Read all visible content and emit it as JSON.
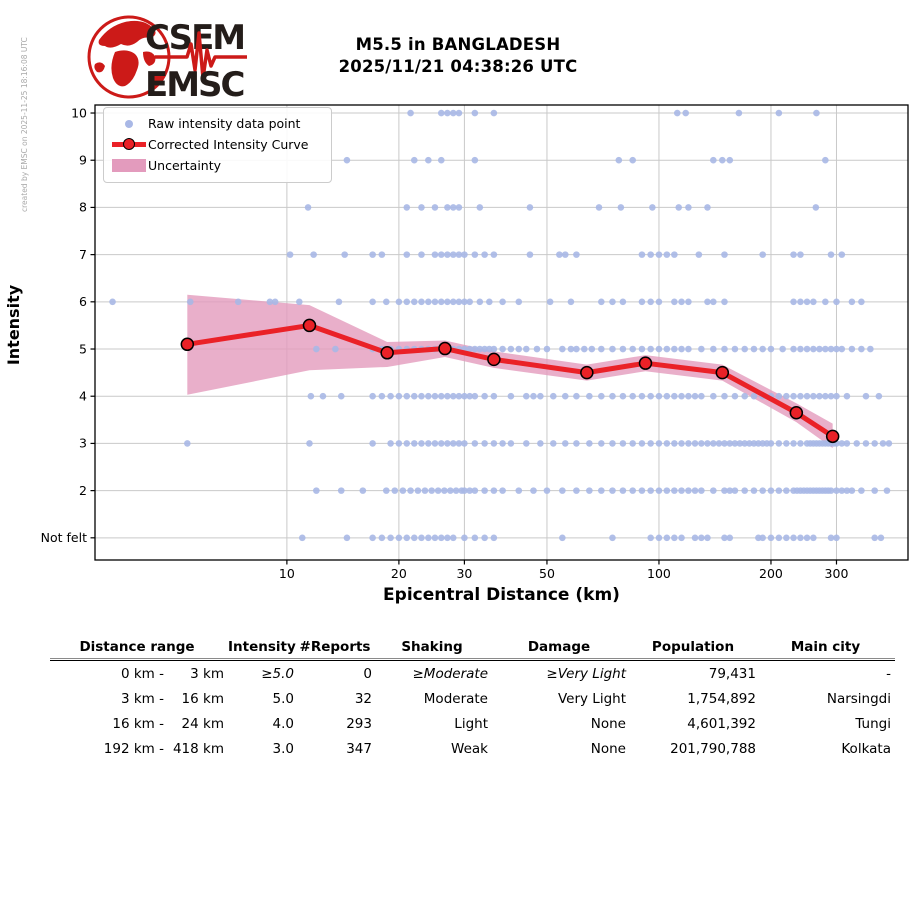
{
  "header": {
    "logo_text_top": "CSEM",
    "logo_text_bottom": "EMSC",
    "title_line1": "M5.5 in BANGLADESH",
    "title_line2": "2025/11/21 04:38:26 UTC"
  },
  "watermark": "created by EMSC on 2025-11-25 18:16:08 UTC",
  "chart_data": {
    "type": "scatter",
    "title": "M5.5 in BANGLADESH 2025/11/21 04:38:26 UTC",
    "xlabel": "Epicentral Distance (km)",
    "ylabel": "Intensity",
    "x_scale": "log",
    "x_range": [
      3.05,
      467
    ],
    "y_range": [
      0.53,
      10.17
    ],
    "grid": true,
    "x_ticks": [
      10,
      20,
      30,
      50,
      100,
      200,
      300
    ],
    "y_ticks": [
      {
        "value": 1,
        "label": "Not felt"
      },
      {
        "value": 2,
        "label": "2"
      },
      {
        "value": 3,
        "label": "3"
      },
      {
        "value": 4,
        "label": "4"
      },
      {
        "value": 5,
        "label": "5"
      },
      {
        "value": 6,
        "label": "6"
      },
      {
        "value": 7,
        "label": "7"
      },
      {
        "value": 8,
        "label": "8"
      },
      {
        "value": 9,
        "label": "9"
      },
      {
        "value": 10,
        "label": "10"
      }
    ],
    "legend_position": "upper left",
    "legend": [
      "Raw intensity data point",
      "Corrected Intensity Curve",
      "Uncertainty"
    ],
    "colors": {
      "raw_point": "#a9b8e6",
      "curve": "#ea2127",
      "band": "#e39bbd",
      "grid": "#c9c9c9",
      "logo_red": "#cc1a18",
      "logo_dark": "#241d1a"
    },
    "raw_points": [
      {
        "intensity": 10,
        "distances_km": [
          21.5,
          26,
          27,
          28,
          29,
          32,
          36,
          112,
          118,
          164,
          210,
          265
        ]
      },
      {
        "intensity": 9,
        "distances_km": [
          14.5,
          22,
          24,
          26,
          32,
          78,
          85,
          140,
          148,
          155,
          280
        ]
      },
      {
        "intensity": 8,
        "distances_km": [
          11.4,
          21,
          23,
          25,
          27,
          28,
          29,
          33,
          45,
          69,
          79,
          96,
          113,
          120,
          135,
          264
        ]
      },
      {
        "intensity": 7,
        "distances_km": [
          10.2,
          11.8,
          14.3,
          17,
          18,
          21,
          23,
          25,
          26,
          27,
          28,
          29,
          30,
          32,
          34,
          36,
          45,
          54,
          56,
          60,
          90,
          95,
          100,
          105,
          110,
          128,
          150,
          190,
          230,
          240,
          290,
          310
        ]
      },
      {
        "intensity": 6,
        "distances_km": [
          3.4,
          5.5,
          7.4,
          9,
          9.3,
          10.8,
          13.8,
          17,
          18.5,
          20,
          21,
          22,
          23,
          24,
          25,
          26,
          27,
          28,
          29,
          30,
          31,
          33,
          35,
          38,
          42,
          51,
          58,
          70,
          75,
          80,
          90,
          95,
          100,
          110,
          115,
          120,
          135,
          140,
          150,
          230,
          240,
          250,
          260,
          280,
          300,
          330,
          350
        ]
      },
      {
        "intensity": 5,
        "distances_km": [
          12,
          13.5,
          17,
          18,
          19,
          20,
          21,
          22,
          23,
          24,
          25,
          26,
          27,
          28,
          29,
          30,
          31,
          32,
          33,
          34,
          35,
          36,
          38,
          40,
          42,
          44,
          47,
          50,
          55,
          58,
          60,
          63,
          66,
          70,
          75,
          80,
          85,
          90,
          95,
          100,
          105,
          110,
          115,
          120,
          130,
          140,
          150,
          160,
          170,
          180,
          190,
          200,
          215,
          230,
          240,
          250,
          260,
          270,
          280,
          290,
          300,
          310,
          330,
          350,
          370
        ]
      },
      {
        "intensity": 4,
        "distances_km": [
          11.6,
          12.5,
          14,
          17,
          18,
          19,
          20,
          21,
          22,
          23,
          24,
          25,
          26,
          27,
          28,
          29,
          30,
          31,
          32,
          34,
          36,
          40,
          44,
          46,
          48,
          52,
          56,
          60,
          65,
          70,
          75,
          80,
          85,
          90,
          95,
          100,
          105,
          110,
          115,
          120,
          125,
          130,
          140,
          150,
          160,
          170,
          180,
          190,
          200,
          210,
          220,
          230,
          240,
          250,
          260,
          270,
          280,
          290,
          300,
          320,
          360,
          390
        ]
      },
      {
        "intensity": 3,
        "distances_km": [
          5.4,
          11.5,
          17,
          19,
          20,
          21,
          22,
          23,
          24,
          25,
          26,
          27,
          28,
          29,
          30,
          32,
          34,
          36,
          38,
          40,
          44,
          48,
          52,
          56,
          60,
          65,
          70,
          75,
          80,
          85,
          90,
          95,
          100,
          105,
          110,
          115,
          120,
          125,
          130,
          135,
          140,
          145,
          150,
          155,
          160,
          165,
          170,
          175,
          180,
          185,
          190,
          195,
          200,
          210,
          220,
          230,
          240,
          250,
          255,
          260,
          265,
          270,
          275,
          280,
          285,
          290,
          295,
          300,
          310,
          320,
          340,
          360,
          380,
          400,
          415
        ]
      },
      {
        "intensity": 2,
        "distances_km": [
          12,
          14,
          16,
          18.5,
          19.5,
          20.5,
          21.5,
          22.5,
          23.5,
          24.5,
          25.5,
          26.5,
          27.5,
          28.5,
          29.5,
          30,
          31,
          32,
          34,
          36,
          38,
          42,
          46,
          50,
          55,
          60,
          65,
          70,
          75,
          80,
          85,
          90,
          95,
          100,
          105,
          110,
          115,
          120,
          125,
          130,
          140,
          150,
          155,
          160,
          170,
          180,
          190,
          200,
          210,
          220,
          230,
          235,
          240,
          245,
          250,
          255,
          260,
          265,
          270,
          275,
          280,
          285,
          290,
          300,
          310,
          320,
          330,
          350,
          380,
          410
        ]
      },
      {
        "intensity": 1,
        "distances_km": [
          11,
          14.5,
          17,
          18,
          19,
          20,
          21,
          22,
          23,
          24,
          25,
          26,
          27,
          28,
          30,
          32,
          34,
          36,
          55,
          75,
          95,
          100,
          105,
          110,
          115,
          125,
          130,
          135,
          150,
          155,
          185,
          190,
          200,
          210,
          220,
          230,
          240,
          250,
          260,
          290,
          300,
          380,
          395
        ]
      }
    ],
    "corrected_curve": {
      "distance_km": [
        5.4,
        11.5,
        18.6,
        26.6,
        36,
        64,
        92,
        148,
        234,
        293
      ],
      "intensity": [
        5.1,
        5.5,
        4.92,
        5.01,
        4.78,
        4.5,
        4.7,
        4.5,
        3.65,
        3.15
      ]
    },
    "uncertainty_band": {
      "distance_km": [
        5.4,
        11.5,
        18.6,
        26.6,
        36,
        64,
        92,
        148,
        234,
        293
      ],
      "upper": [
        6.15,
        5.93,
        5.15,
        5.18,
        4.95,
        4.67,
        4.87,
        4.67,
        3.85,
        3.42
      ],
      "lower": [
        4.03,
        4.55,
        4.62,
        4.83,
        4.6,
        4.33,
        4.53,
        4.33,
        3.45,
        2.9
      ]
    }
  },
  "table": {
    "headers": [
      "Distance range",
      "Intensity",
      "#Reports",
      "Shaking",
      "Damage",
      "Population",
      "Main city"
    ],
    "rows": [
      {
        "range_from": "0 km -",
        "range_to": "3 km",
        "intensity": "≥5.0",
        "reports": "0",
        "shaking": "≥Moderate",
        "damage": "≥Very Light",
        "population": "79,431",
        "city": "-",
        "italic": true
      },
      {
        "range_from": "3 km -",
        "range_to": "16 km",
        "intensity": "5.0",
        "reports": "32",
        "shaking": "Moderate",
        "damage": "Very Light",
        "population": "1,754,892",
        "city": "Narsingdi",
        "italic": false
      },
      {
        "range_from": "16 km -",
        "range_to": "24 km",
        "intensity": "4.0",
        "reports": "293",
        "shaking": "Light",
        "damage": "None",
        "population": "4,601,392",
        "city": "Tungi",
        "italic": false
      },
      {
        "range_from": "192 km -",
        "range_to": "418 km",
        "intensity": "3.0",
        "reports": "347",
        "shaking": "Weak",
        "damage": "None",
        "population": "201,790,788",
        "city": "Kolkata",
        "italic": false
      }
    ]
  }
}
